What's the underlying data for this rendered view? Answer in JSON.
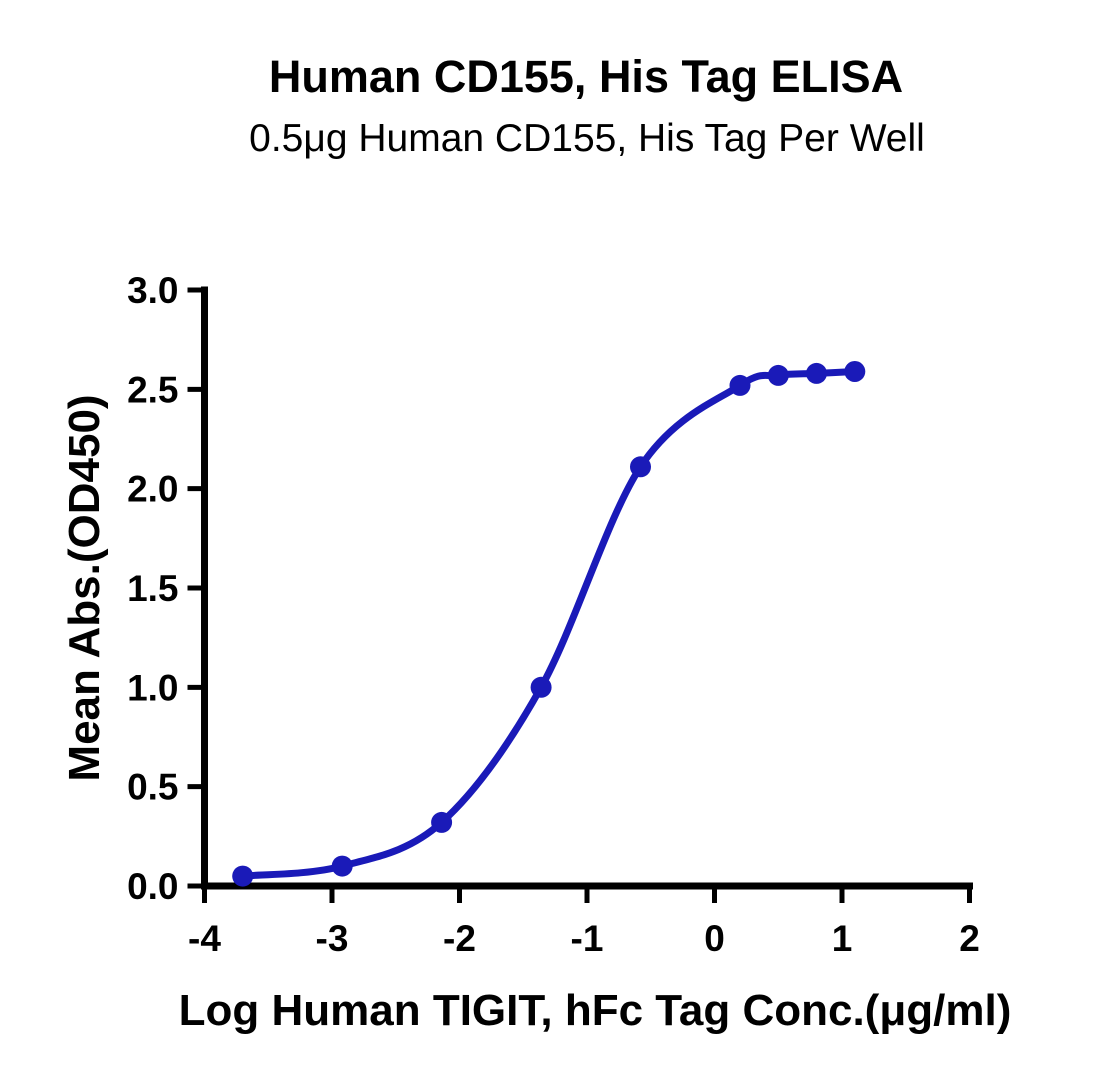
{
  "chart_data": {
    "type": "scatter",
    "title": "Human CD155, His Tag ELISA",
    "subtitle": "0.5μg Human CD155, His Tag Per Well",
    "xlabel": "Log Human TIGIT, hFc Tag Conc.(μg/ml)",
    "ylabel": "Mean Abs.(OD450)",
    "xlim": [
      -4,
      2
    ],
    "ylim": [
      0,
      3
    ],
    "xticks": [
      -4,
      -3,
      -2,
      -1,
      0,
      1,
      2
    ],
    "xtick_labels": [
      "-4",
      "-3",
      "-2",
      "-1",
      "0",
      "1",
      "2"
    ],
    "yticks": [
      0,
      0.5,
      1,
      1.5,
      2,
      2.5,
      3
    ],
    "ytick_labels": [
      "0.0",
      "0.5",
      "1.0",
      "1.5",
      "2.0",
      "2.5",
      "3.0"
    ],
    "grid": false,
    "legend": null,
    "series": [
      {
        "log_conc": [
          -3.7,
          -2.92,
          -2.14,
          -1.36,
          -0.58,
          0.2,
          0.5,
          0.8,
          1.1
        ],
        "od450": [
          0.05,
          0.1,
          0.32,
          1.0,
          2.11,
          2.52,
          2.57,
          2.58,
          2.59
        ],
        "marker": "circle",
        "line": "sigmoid-fit"
      }
    ],
    "colors": {
      "curve": "#1A1AB8",
      "marker": "#1A1AB8",
      "axis": "#000000",
      "text": "#000000",
      "background": "#ffffff"
    }
  }
}
